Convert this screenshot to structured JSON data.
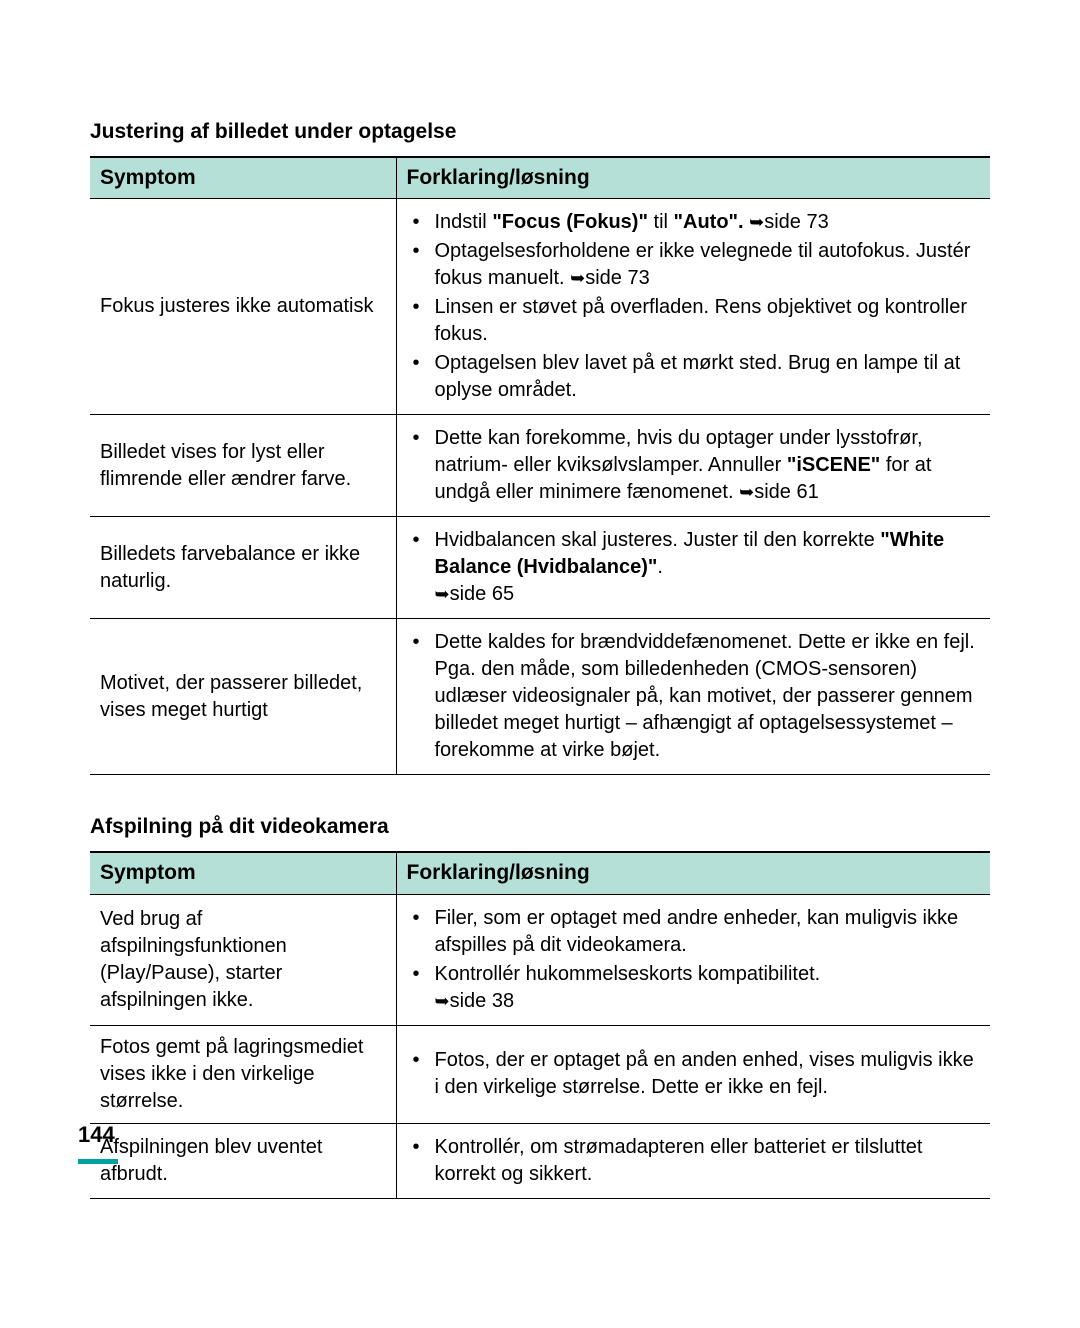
{
  "colors": {
    "header_bg": "#b4e0d8",
    "border": "#000000",
    "page_marker": "#00a0a0",
    "text": "#000000",
    "background": "#ffffff"
  },
  "section1": {
    "title": "Justering af billedet under optagelse",
    "headers": [
      "Symptom",
      "Forklaring/løsning"
    ],
    "rows": [
      {
        "symptom": "Fokus justeres ikke automatisk",
        "items": [
          {
            "pre": "Indstil ",
            "bold1": "\"Focus (Fokus)\"",
            "mid": " til ",
            "bold2": "\"Auto\".",
            "post": " ",
            "ref": "side 73"
          },
          {
            "text": "Optagelsesforholdene er ikke velegnede til autofokus. Justér fokus manuelt. ",
            "ref": "side 73"
          },
          {
            "text": "Linsen er støvet på overfladen. Rens objektivet og kontroller fokus."
          },
          {
            "text": "Optagelsen blev lavet på et mørkt sted. Brug en lampe til at oplyse området."
          }
        ]
      },
      {
        "symptom": "Billedet vises for lyst eller flimrende eller ændrer farve.",
        "items": [
          {
            "pre": "Dette kan forekomme, hvis du optager under lysstofrør, natrium- eller kviksølvslamper. Annuller ",
            "bold1": "\"iSCENE\"",
            "post": " for at undgå eller minimere fænomenet. ",
            "ref": "side 61"
          }
        ]
      },
      {
        "symptom": "Billedets farvebalance er ikke naturlig.",
        "items": [
          {
            "pre": "Hvidbalancen skal justeres. Juster til den korrekte ",
            "bold1": "\"White Balance (Hvidbalance)\"",
            "post": ". ",
            "ref": "side 65"
          }
        ]
      },
      {
        "symptom": "Motivet, der passerer billedet, vises meget hurtigt",
        "items": [
          {
            "text": "Dette kaldes for brændviddefænomenet. Dette er ikke en fejl. Pga. den måde, som billedenheden (CMOS-sensoren) udlæser videosignaler på, kan motivet, der passerer gennem billedet meget hurtigt – afhængigt af optagelsessystemet – forekomme at virke bøjet."
          }
        ]
      }
    ]
  },
  "section2": {
    "title": "Afspilning på dit videokamera",
    "headers": [
      "Symptom",
      "Forklaring/løsning"
    ],
    "rows": [
      {
        "symptom": "Ved brug af afspilningsfunktionen (Play/Pause), starter afspilningen ikke.",
        "items": [
          {
            "text": "Filer, som er optaget med andre enheder, kan muligvis ikke afspilles på dit videokamera."
          },
          {
            "text": "Kontrollér hukommelseskorts kompatibilitet. ",
            "ref": "side 38"
          }
        ]
      },
      {
        "symptom": "Fotos gemt på lagringsmediet vises ikke i den virkelige størrelse.",
        "items": [
          {
            "text": "Fotos, der er optaget på en anden enhed, vises muligvis ikke i den virkelige størrelse. Dette er ikke en fejl."
          }
        ]
      },
      {
        "symptom": "Afspilningen blev uventet afbrudt.",
        "items": [
          {
            "text": "Kontrollér, om strømadapteren eller batteriet er tilsluttet korrekt og sikkert."
          }
        ]
      }
    ]
  },
  "pageNumber": "144",
  "arrowGlyph": "➥"
}
